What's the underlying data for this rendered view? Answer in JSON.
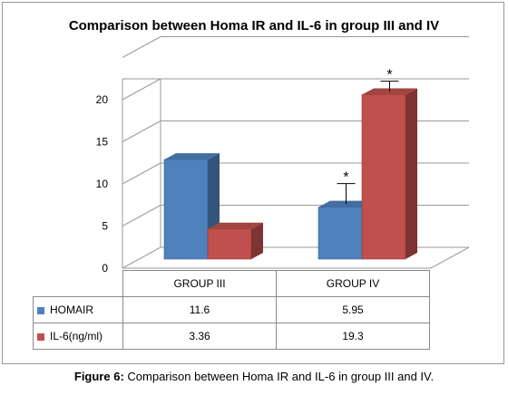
{
  "chart_data": {
    "type": "bar",
    "title": "Comparison between Homa IR and IL-6 in group III and IV",
    "categories": [
      "GROUP III",
      "GROUP IV"
    ],
    "series": [
      {
        "name": "HOMAIR",
        "values": [
          11.6,
          5.95
        ],
        "color": "#4f81bd",
        "error": [
          null,
          2.8
        ]
      },
      {
        "name": "IL-6(ng/ml)",
        "values": [
          3.36,
          19.3
        ],
        "color": "#c0504d",
        "error": [
          null,
          1.6
        ]
      }
    ],
    "table_values": {
      "HOMAIR": [
        "11.6",
        "5.95"
      ],
      "IL-6(ng/ml)": [
        "3.36",
        "19.3"
      ]
    },
    "yticks": [
      "0",
      "5",
      "10",
      "15",
      "20"
    ],
    "ylim": [
      0,
      20
    ],
    "grid": true,
    "annotations": [
      "*",
      "*"
    ],
    "legend": "table-left",
    "xlabel": "",
    "ylabel": ""
  },
  "caption": {
    "label": "Figure 6:",
    "text": " Comparison between Homa IR and IL-6 in group III and IV."
  }
}
